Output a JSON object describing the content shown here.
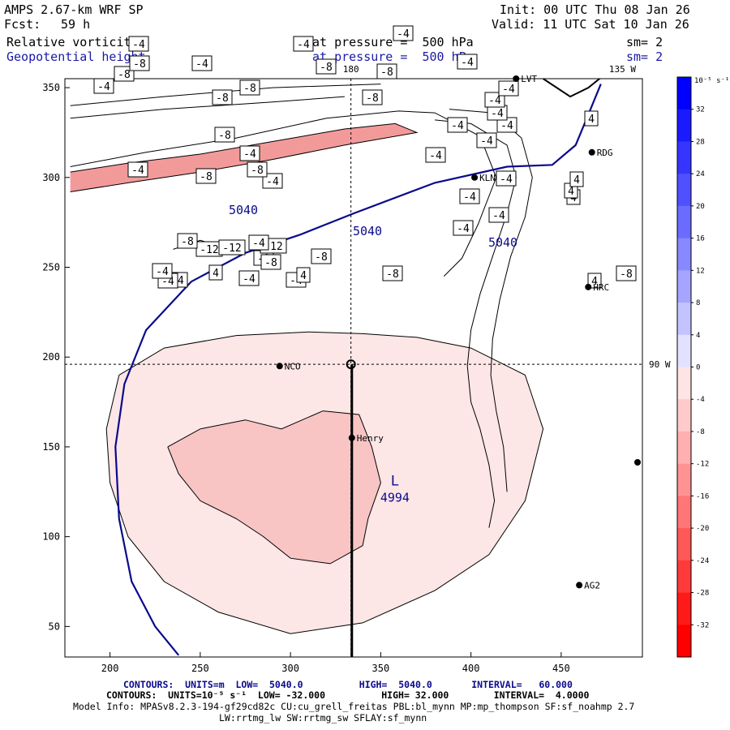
{
  "header": {
    "model": "AMPS 2.67-km WRF SP",
    "forecast_label": "Fcst:",
    "forecast_hours": "59 h",
    "init": "Init: 00 UTC Thu 08 Jan 26",
    "valid": "Valid: 11 UTC Sat 10 Jan 26",
    "field1": "Relative vorticity",
    "field2": "Geopotential height",
    "pressure1": "at pressure =  500 hPa",
    "pressure2": "at pressure =  500 hPa",
    "sm1": "sm= 2",
    "sm2": "sm= 2"
  },
  "footer": {
    "contours1": "CONTOURS:  UNITS=m  LOW=  5040.0          HIGH=  5040.0       INTERVAL=   60.000",
    "contours2": "CONTOURS:  UNITS=10⁻⁵ s⁻¹  LOW= -32.000          HIGH= 32.000        INTERVAL=  4.0000",
    "model_info": "Model Info: MPASv8.2.3-194-gf29cd82c CU:cu_grell_freitas PBL:bl_mynn MP:mp_thompson SF:sf_noahmp 2.7",
    "model_info2": "LW:rrtmg_lw SW:rrtmg_sw SFLAY:sf_mynn"
  },
  "colors": {
    "height_contour": "#0a0a8c",
    "vort_fill_light": "#fde6e6",
    "vort_fill_mid": "#f9c4c4",
    "vort_fill_strong": "#f29a9a"
  },
  "chart_data": {
    "type": "contour-map",
    "x_ticks": [
      200,
      250,
      300,
      350,
      400,
      450
    ],
    "y_ticks": [
      50,
      100,
      150,
      200,
      250,
      300,
      350
    ],
    "xlim": [
      175,
      495
    ],
    "ylim": [
      33,
      355
    ],
    "meridian_labels": [
      {
        "text": "180",
        "pos": "top"
      },
      {
        "text": "135 W",
        "pos": "top-right"
      },
      {
        "text": "90 W",
        "pos": "right"
      }
    ],
    "guide_lines": {
      "meridian_x": 333.5,
      "parallel_y": 196
    },
    "height_contour_value": 5040,
    "low_center": {
      "label": "L",
      "value": "4994",
      "x": 330,
      "y": 133
    },
    "stations": [
      {
        "name": "NCO",
        "x": 294,
        "y": 195
      },
      {
        "name": "Henry",
        "x": 334,
        "y": 155
      },
      {
        "name": "KLN",
        "x": 402,
        "y": 300
      },
      {
        "name": "RDG",
        "x": 467,
        "y": 314
      },
      {
        "name": "HRC",
        "x": 465,
        "y": 239
      },
      {
        "name": "AG2",
        "x": 460,
        "y": 73
      },
      {
        "name": "LVT",
        "x": 425,
        "y": 355
      }
    ],
    "vort_labels": [
      {
        "v": "-4",
        "x": 219,
        "y": 345
      },
      {
        "v": "-4",
        "x": 207,
        "y": 346
      },
      {
        "v": "-4",
        "x": 200,
        "y": 334
      },
      {
        "v": "-4",
        "x": 307,
        "y": 343
      },
      {
        "v": "-4",
        "x": 365,
        "y": 345
      },
      {
        "v": "4",
        "x": 266,
        "y": 336
      },
      {
        "v": "4",
        "x": 374,
        "y": 339
      },
      {
        "v": "-8",
        "x": 325,
        "y": 318
      },
      {
        "v": "-8",
        "x": 396,
        "y": 316
      },
      {
        "v": "-8",
        "x": 484,
        "y": 337
      },
      {
        "v": "-8",
        "x": 334,
        "y": 323
      },
      {
        "v": "-12",
        "x": 258,
        "y": 307
      },
      {
        "v": "-12",
        "x": 286,
        "y": 305
      },
      {
        "v": "-12",
        "x": 337,
        "y": 303
      },
      {
        "v": "-8",
        "x": 231,
        "y": 297
      },
      {
        "v": "-4",
        "x": 319,
        "y": 299
      },
      {
        "v": "-4",
        "x": 571,
        "y": 281
      },
      {
        "v": "-4",
        "x": 615,
        "y": 265
      },
      {
        "v": "-4",
        "x": 579,
        "y": 242
      },
      {
        "v": "-4",
        "x": 624,
        "y": 220
      },
      {
        "v": "-4",
        "x": 537,
        "y": 191
      },
      {
        "v": "-4",
        "x": 600,
        "y": 173
      },
      {
        "v": "-4",
        "x": 564,
        "y": 154
      },
      {
        "v": "-4",
        "x": 625,
        "y": 154
      },
      {
        "v": "-4",
        "x": 613,
        "y": 139
      },
      {
        "v": "-4",
        "x": 610,
        "y": 123
      },
      {
        "v": "-4",
        "x": 627,
        "y": 109
      },
      {
        "v": "4",
        "x": 733,
        "y": 346
      },
      {
        "v": "4",
        "x": 707,
        "y": 243
      },
      {
        "v": "4",
        "x": 704,
        "y": 235
      },
      {
        "v": "4",
        "x": 711,
        "y": 221
      },
      {
        "v": "4",
        "x": 729,
        "y": 146
      },
      {
        "v": "-8",
        "x": 772,
        "y": 337
      },
      {
        "v": "-4",
        "x": 336,
        "y": 223
      },
      {
        "v": "-8",
        "x": 254,
        "y": 217
      },
      {
        "v": "-8",
        "x": 317,
        "y": 209
      },
      {
        "v": "-4",
        "x": 170,
        "y": 209
      },
      {
        "v": "-4",
        "x": 308,
        "y": 189
      },
      {
        "v": "-8",
        "x": 277,
        "y": 166
      },
      {
        "v": "-8",
        "x": 274,
        "y": 120
      },
      {
        "v": "-8",
        "x": 308,
        "y": 108
      },
      {
        "v": "-8",
        "x": 459,
        "y": 120
      },
      {
        "v": "-8",
        "x": 477,
        "y": 88
      },
      {
        "v": "-8",
        "x": 402,
        "y": 82
      },
      {
        "v": "-4",
        "x": 128,
        "y": 106
      },
      {
        "v": "-8",
        "x": 153,
        "y": 91
      },
      {
        "v": "-8",
        "x": 172,
        "y": 78
      },
      {
        "v": "-4",
        "x": 249,
        "y": 78
      },
      {
        "v": "-4",
        "x": 576,
        "y": 76
      },
      {
        "v": "-4",
        "x": 171,
        "y": 54
      },
      {
        "v": "-4",
        "x": 374,
        "y": 54
      },
      {
        "v": "-4",
        "x": 497,
        "y": 41
      }
    ],
    "height_labels": [
      {
        "v": "5040",
        "x": 300,
        "y": 264
      },
      {
        "v": "5040",
        "x": 453,
        "y": 290
      },
      {
        "v": "5040",
        "x": 620,
        "y": 304
      }
    ],
    "colorbar": {
      "title": "10⁻⁵ s⁻¹",
      "levels": [
        32,
        28,
        24,
        20,
        16,
        12,
        8,
        4,
        0,
        -4,
        -8,
        -12,
        -16,
        -20,
        -24,
        -28,
        -32
      ],
      "colors": [
        "#0000ff",
        "#1a1aff",
        "#3535ff",
        "#5050ff",
        "#6b6bff",
        "#8888ff",
        "#a5a5ff",
        "#c3c3ff",
        "#e2e2ff",
        "#ffe4e4",
        "#ffcaca",
        "#ffafaf",
        "#ff9393",
        "#ff7676",
        "#ff5858",
        "#ff3a3a",
        "#ff1a1a",
        "#ff0000"
      ]
    }
  }
}
